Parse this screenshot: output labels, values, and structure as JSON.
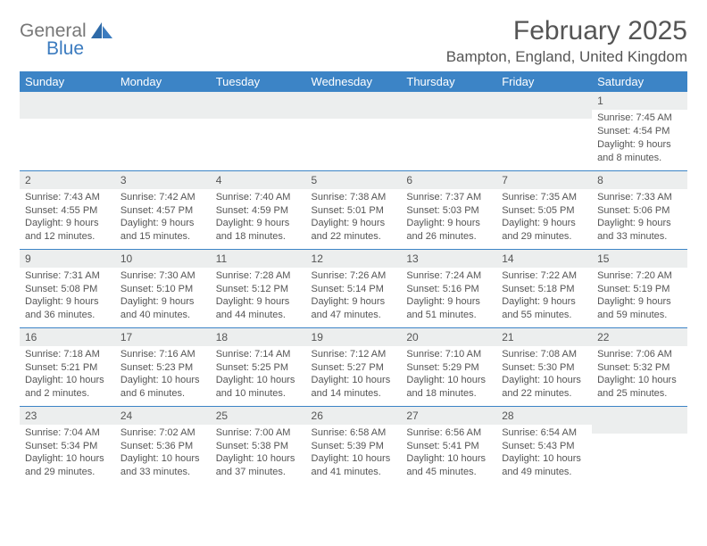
{
  "logo": {
    "general": "General",
    "blue": "Blue"
  },
  "title": "February 2025",
  "location": "Bampton, England, United Kingdom",
  "colors": {
    "header_bg": "#3c84c6",
    "header_fg": "#ffffff",
    "daynum_bg": "#eceeee",
    "text": "#555555",
    "rule": "#3c84c6",
    "logo_blue": "#3b7bbf",
    "logo_gray": "#777777"
  },
  "weekdays": [
    "Sunday",
    "Monday",
    "Tuesday",
    "Wednesday",
    "Thursday",
    "Friday",
    "Saturday"
  ],
  "weeks": [
    [
      null,
      null,
      null,
      null,
      null,
      null,
      {
        "n": "1",
        "sr": "7:45 AM",
        "ss": "4:54 PM",
        "dl": "9 hours and 8 minutes."
      }
    ],
    [
      {
        "n": "2",
        "sr": "7:43 AM",
        "ss": "4:55 PM",
        "dl": "9 hours and 12 minutes."
      },
      {
        "n": "3",
        "sr": "7:42 AM",
        "ss": "4:57 PM",
        "dl": "9 hours and 15 minutes."
      },
      {
        "n": "4",
        "sr": "7:40 AM",
        "ss": "4:59 PM",
        "dl": "9 hours and 18 minutes."
      },
      {
        "n": "5",
        "sr": "7:38 AM",
        "ss": "5:01 PM",
        "dl": "9 hours and 22 minutes."
      },
      {
        "n": "6",
        "sr": "7:37 AM",
        "ss": "5:03 PM",
        "dl": "9 hours and 26 minutes."
      },
      {
        "n": "7",
        "sr": "7:35 AM",
        "ss": "5:05 PM",
        "dl": "9 hours and 29 minutes."
      },
      {
        "n": "8",
        "sr": "7:33 AM",
        "ss": "5:06 PM",
        "dl": "9 hours and 33 minutes."
      }
    ],
    [
      {
        "n": "9",
        "sr": "7:31 AM",
        "ss": "5:08 PM",
        "dl": "9 hours and 36 minutes."
      },
      {
        "n": "10",
        "sr": "7:30 AM",
        "ss": "5:10 PM",
        "dl": "9 hours and 40 minutes."
      },
      {
        "n": "11",
        "sr": "7:28 AM",
        "ss": "5:12 PM",
        "dl": "9 hours and 44 minutes."
      },
      {
        "n": "12",
        "sr": "7:26 AM",
        "ss": "5:14 PM",
        "dl": "9 hours and 47 minutes."
      },
      {
        "n": "13",
        "sr": "7:24 AM",
        "ss": "5:16 PM",
        "dl": "9 hours and 51 minutes."
      },
      {
        "n": "14",
        "sr": "7:22 AM",
        "ss": "5:18 PM",
        "dl": "9 hours and 55 minutes."
      },
      {
        "n": "15",
        "sr": "7:20 AM",
        "ss": "5:19 PM",
        "dl": "9 hours and 59 minutes."
      }
    ],
    [
      {
        "n": "16",
        "sr": "7:18 AM",
        "ss": "5:21 PM",
        "dl": "10 hours and 2 minutes."
      },
      {
        "n": "17",
        "sr": "7:16 AM",
        "ss": "5:23 PM",
        "dl": "10 hours and 6 minutes."
      },
      {
        "n": "18",
        "sr": "7:14 AM",
        "ss": "5:25 PM",
        "dl": "10 hours and 10 minutes."
      },
      {
        "n": "19",
        "sr": "7:12 AM",
        "ss": "5:27 PM",
        "dl": "10 hours and 14 minutes."
      },
      {
        "n": "20",
        "sr": "7:10 AM",
        "ss": "5:29 PM",
        "dl": "10 hours and 18 minutes."
      },
      {
        "n": "21",
        "sr": "7:08 AM",
        "ss": "5:30 PM",
        "dl": "10 hours and 22 minutes."
      },
      {
        "n": "22",
        "sr": "7:06 AM",
        "ss": "5:32 PM",
        "dl": "10 hours and 25 minutes."
      }
    ],
    [
      {
        "n": "23",
        "sr": "7:04 AM",
        "ss": "5:34 PM",
        "dl": "10 hours and 29 minutes."
      },
      {
        "n": "24",
        "sr": "7:02 AM",
        "ss": "5:36 PM",
        "dl": "10 hours and 33 minutes."
      },
      {
        "n": "25",
        "sr": "7:00 AM",
        "ss": "5:38 PM",
        "dl": "10 hours and 37 minutes."
      },
      {
        "n": "26",
        "sr": "6:58 AM",
        "ss": "5:39 PM",
        "dl": "10 hours and 41 minutes."
      },
      {
        "n": "27",
        "sr": "6:56 AM",
        "ss": "5:41 PM",
        "dl": "10 hours and 45 minutes."
      },
      {
        "n": "28",
        "sr": "6:54 AM",
        "ss": "5:43 PM",
        "dl": "10 hours and 49 minutes."
      },
      null
    ]
  ],
  "labels": {
    "sunrise": "Sunrise: ",
    "sunset": "Sunset: ",
    "daylight": "Daylight: "
  }
}
